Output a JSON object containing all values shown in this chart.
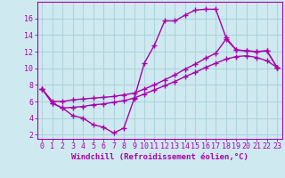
{
  "background_color": "#ceeaf0",
  "grid_color": "#afd4dc",
  "line_color": "#aa00aa",
  "marker": "+",
  "markersize": 4,
  "linewidth": 1.0,
  "xlabel": "Windchill (Refroidissement éolien,°C)",
  "xlabel_fontsize": 6.5,
  "tick_fontsize": 6,
  "xlim": [
    -0.5,
    23.5
  ],
  "ylim": [
    1.5,
    18.0
  ],
  "yticks": [
    2,
    4,
    6,
    8,
    10,
    12,
    14,
    16
  ],
  "xticks": [
    0,
    1,
    2,
    3,
    4,
    5,
    6,
    7,
    8,
    9,
    10,
    11,
    12,
    13,
    14,
    15,
    16,
    17,
    18,
    19,
    20,
    21,
    22,
    23
  ],
  "line1_x": [
    0,
    1,
    2,
    3,
    4,
    5,
    6,
    7,
    8,
    9,
    10,
    11,
    12,
    13,
    14,
    15,
    16,
    17,
    18,
    19,
    20,
    21,
    22,
    23
  ],
  "line1_y": [
    7.5,
    5.8,
    5.2,
    4.3,
    4.0,
    3.2,
    2.9,
    2.2,
    2.8,
    6.3,
    10.6,
    12.8,
    15.7,
    15.7,
    16.4,
    17.0,
    17.1,
    17.1,
    13.7,
    12.2,
    12.1,
    12.0,
    12.1,
    10.1
  ],
  "line2_x": [
    0,
    1,
    2,
    3,
    4,
    5,
    6,
    7,
    8,
    9,
    10,
    11,
    12,
    13,
    14,
    15,
    16,
    17,
    18,
    19,
    20,
    21,
    22,
    23
  ],
  "line2_y": [
    7.5,
    6.0,
    6.0,
    6.2,
    6.3,
    6.4,
    6.5,
    6.6,
    6.8,
    7.0,
    7.5,
    8.0,
    8.6,
    9.2,
    9.9,
    10.5,
    11.2,
    11.8,
    13.5,
    12.2,
    12.1,
    12.0,
    12.1,
    10.1
  ],
  "line3_x": [
    0,
    1,
    2,
    3,
    4,
    5,
    6,
    7,
    8,
    9,
    10,
    11,
    12,
    13,
    14,
    15,
    16,
    17,
    18,
    19,
    20,
    21,
    22,
    23
  ],
  "line3_y": [
    7.5,
    5.8,
    5.2,
    5.3,
    5.4,
    5.6,
    5.7,
    5.9,
    6.1,
    6.4,
    6.9,
    7.4,
    7.9,
    8.4,
    9.0,
    9.5,
    10.1,
    10.6,
    11.1,
    11.4,
    11.5,
    11.3,
    10.9,
    10.1
  ]
}
